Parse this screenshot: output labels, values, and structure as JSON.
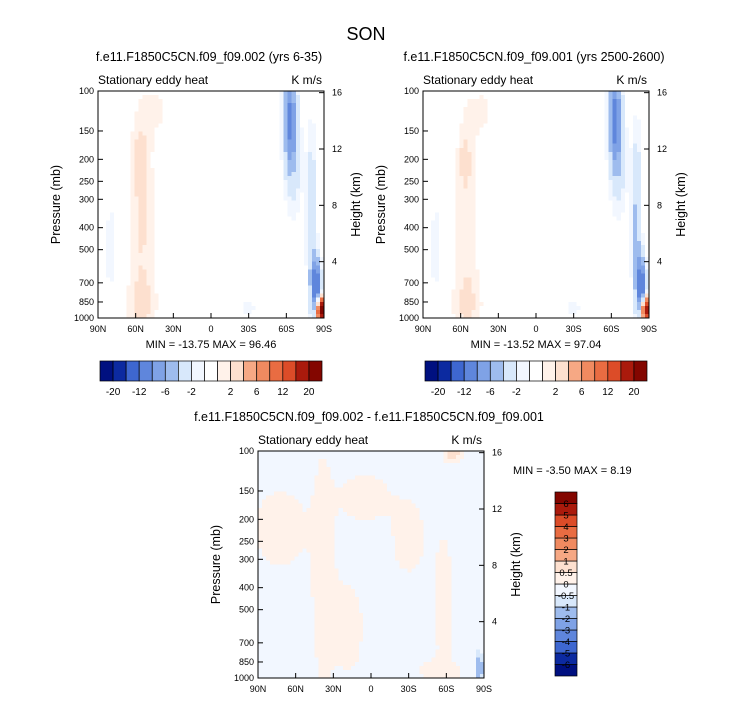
{
  "figure_title": "SON",
  "colors": {
    "neg": [
      "#f2f7ff",
      "#d8e8fb",
      "#bdd3f5",
      "#9ebcee",
      "#7fa2e6",
      "#5f86dc",
      "#3e67d0",
      "#2147bf",
      "#0c2aa0",
      "#001080"
    ],
    "pos": [
      "#fff2ea",
      "#fde0cf",
      "#fac6ab",
      "#f6a884",
      "#f08a60",
      "#e96c42",
      "#dc4c28",
      "#c83218",
      "#aa1a0c",
      "#830600"
    ]
  },
  "chart_data": [
    {
      "type": "heatmap",
      "title": "f.e11.F1850C5CN.f09_f09.002 (yrs 6-35)",
      "left_label": "Stationary eddy heat",
      "right_label": "K m/s",
      "ylabel": "Pressure (mb)",
      "ylabel_right": "Height (km)",
      "xlim": [
        90,
        -90
      ],
      "ylim": [
        1000,
        100
      ],
      "y_log": true,
      "x_ticks": [
        90,
        60,
        30,
        0,
        -30,
        -60,
        -90
      ],
      "x_tick_labels": [
        "90N",
        "60N",
        "30N",
        "0",
        "30S",
        "60S",
        "90S"
      ],
      "y_ticks": [
        100,
        150,
        200,
        250,
        300,
        400,
        500,
        700,
        850,
        1000
      ],
      "y_tick_labels": [
        "100",
        "150",
        "200",
        "250",
        "300",
        "400",
        "500",
        "700",
        "850",
        "1000"
      ],
      "height_ticks": [
        4,
        8,
        12,
        16
      ],
      "height_tick_labels": [
        "4",
        "8",
        "12",
        "16"
      ],
      "min_text": "MIN = -13.75  MAX = 96.46",
      "min": -13.75,
      "max": 96.46,
      "levels": [
        -20,
        -16,
        -12,
        -8,
        -6,
        -4,
        -2,
        -1,
        1,
        2,
        4,
        6,
        8,
        12,
        16,
        20
      ],
      "colorbar_labels": [
        "-20",
        "-12",
        "-6",
        "-2",
        "2",
        "6",
        "12",
        "20"
      ],
      "features": [
        {
          "lat": 55,
          "p": 350,
          "width_lat": 10,
          "width_logp": 0.55,
          "amp": 2.2
        },
        {
          "lat": 57,
          "p": 200,
          "width_lat": 5,
          "width_logp": 0.12,
          "amp": 1.8
        },
        {
          "lat": 55,
          "p": 880,
          "width_lat": 14,
          "width_logp": 0.12,
          "amp": 1.5
        },
        {
          "lat": 80,
          "p": 500,
          "width_lat": 5,
          "width_logp": 0.3,
          "amp": -1.4
        },
        {
          "lat": 40,
          "p": 120,
          "width_lat": 10,
          "width_logp": 0.15,
          "amp": 1.0
        },
        {
          "lat": -15,
          "p": 150,
          "width_lat": 10,
          "width_logp": 0.15,
          "amp": 0.7
        },
        {
          "lat": -47,
          "p": 115,
          "width_lat": 6,
          "width_logp": 0.12,
          "amp": 0.7
        },
        {
          "lat": -63,
          "p": 130,
          "width_lat": 5,
          "width_logp": 0.22,
          "amp": -8.0
        },
        {
          "lat": -66,
          "p": 210,
          "width_lat": 7,
          "width_logp": 0.25,
          "amp": -2.5
        },
        {
          "lat": -80,
          "p": 380,
          "width_lat": 4,
          "width_logp": 0.4,
          "amp": -4.0
        },
        {
          "lat": -84,
          "p": 720,
          "width_lat": 4,
          "width_logp": 0.12,
          "amp": -10.0
        },
        {
          "lat": -88,
          "p": 920,
          "width_lat": 3.5,
          "width_logp": 0.05,
          "amp": 24.0
        },
        {
          "lat": -30,
          "p": 900,
          "width_lat": 10,
          "width_logp": 0.06,
          "amp": -1.2
        },
        {
          "lat": 10,
          "p": 980,
          "width_lat": 20,
          "width_logp": 0.04,
          "amp": -0.8
        }
      ]
    },
    {
      "type": "heatmap",
      "title": "f.e11.F1850C5CN.f09_f09.001 (yrs 2500-2600)",
      "left_label": "Stationary eddy heat",
      "right_label": "K m/s",
      "ylabel": "Pressure (mb)",
      "ylabel_right": "Height (km)",
      "xlim": [
        90,
        -90
      ],
      "ylim": [
        1000,
        100
      ],
      "y_log": true,
      "x_ticks": [
        90,
        60,
        30,
        0,
        -30,
        -60,
        -90
      ],
      "x_tick_labels": [
        "90N",
        "60N",
        "30N",
        "0",
        "30S",
        "60S",
        "90S"
      ],
      "y_ticks": [
        100,
        150,
        200,
        250,
        300,
        400,
        500,
        700,
        850,
        1000
      ],
      "y_tick_labels": [
        "100",
        "150",
        "200",
        "250",
        "300",
        "400",
        "500",
        "700",
        "850",
        "1000"
      ],
      "height_ticks": [
        4,
        8,
        12,
        16
      ],
      "height_tick_labels": [
        "4",
        "8",
        "12",
        "16"
      ],
      "min_text": "MIN = -13.52  MAX = 97.04",
      "min": -13.52,
      "max": 97.04,
      "levels": [
        -20,
        -16,
        -12,
        -8,
        -6,
        -4,
        -2,
        -1,
        1,
        2,
        4,
        6,
        8,
        12,
        16,
        20
      ],
      "colorbar_labels": [
        "-20",
        "-12",
        "-6",
        "-2",
        "2",
        "6",
        "12",
        "20"
      ],
      "features": [
        {
          "lat": 55,
          "p": 350,
          "width_lat": 10,
          "width_logp": 0.55,
          "amp": 2.0
        },
        {
          "lat": 57,
          "p": 200,
          "width_lat": 4,
          "width_logp": 0.08,
          "amp": 1.6
        },
        {
          "lat": 55,
          "p": 880,
          "width_lat": 14,
          "width_logp": 0.12,
          "amp": 1.4
        },
        {
          "lat": 80,
          "p": 500,
          "width_lat": 5,
          "width_logp": 0.3,
          "amp": -1.4
        },
        {
          "lat": 40,
          "p": 120,
          "width_lat": 10,
          "width_logp": 0.15,
          "amp": 1.0
        },
        {
          "lat": -15,
          "p": 150,
          "width_lat": 10,
          "width_logp": 0.15,
          "amp": 0.7
        },
        {
          "lat": -47,
          "p": 115,
          "width_lat": 6,
          "width_logp": 0.12,
          "amp": 0.7
        },
        {
          "lat": -63,
          "p": 130,
          "width_lat": 5,
          "width_logp": 0.22,
          "amp": -8.5
        },
        {
          "lat": -66,
          "p": 210,
          "width_lat": 7,
          "width_logp": 0.25,
          "amp": -2.5
        },
        {
          "lat": -80,
          "p": 380,
          "width_lat": 4,
          "width_logp": 0.4,
          "amp": -4.5
        },
        {
          "lat": -84,
          "p": 720,
          "width_lat": 4,
          "width_logp": 0.12,
          "amp": -10.0
        },
        {
          "lat": -88,
          "p": 920,
          "width_lat": 3.5,
          "width_logp": 0.05,
          "amp": 22.0
        },
        {
          "lat": -30,
          "p": 900,
          "width_lat": 10,
          "width_logp": 0.06,
          "amp": -1.2
        },
        {
          "lat": 10,
          "p": 980,
          "width_lat": 20,
          "width_logp": 0.04,
          "amp": -0.8
        }
      ]
    },
    {
      "type": "heatmap",
      "title": "f.e11.F1850C5CN.f09_f09.002 - f.e11.F1850C5CN.f09_f09.001",
      "left_label": "Stationary eddy heat",
      "right_label": "K m/s",
      "ylabel": "Pressure (mb)",
      "ylabel_right": "Height (km)",
      "xlim": [
        90,
        -90
      ],
      "ylim": [
        1000,
        100
      ],
      "y_log": true,
      "x_ticks": [
        90,
        60,
        30,
        0,
        -30,
        -60,
        -90
      ],
      "x_tick_labels": [
        "90N",
        "60N",
        "30N",
        "0",
        "30S",
        "60S",
        "90S"
      ],
      "y_ticks": [
        100,
        150,
        200,
        250,
        300,
        400,
        500,
        700,
        850,
        1000
      ],
      "y_tick_labels": [
        "100",
        "150",
        "200",
        "250",
        "300",
        "400",
        "500",
        "700",
        "850",
        "1000"
      ],
      "height_ticks": [
        4,
        8,
        12,
        16
      ],
      "height_tick_labels": [
        "4",
        "8",
        "12",
        "16"
      ],
      "min_text": "MIN =  -3.50  MAX =  8.19",
      "min": -3.5,
      "max": 8.19,
      "levels": [
        -6,
        -5,
        -4,
        -3,
        -2,
        -1,
        -0.5,
        0,
        0.5,
        1,
        2,
        3,
        4,
        5,
        6
      ],
      "colorbar_labels": [
        "-6",
        "-5",
        "-4",
        "-3",
        "-2",
        "-1",
        "-0.5",
        "0",
        "0.5",
        "1",
        "2",
        "3",
        "4",
        "5",
        "6"
      ],
      "background": -0.2,
      "features": [
        {
          "lat": 72,
          "p": 220,
          "width_lat": 22,
          "width_logp": 0.18,
          "amp": 0.45
        },
        {
          "lat": 38,
          "p": 330,
          "width_lat": 9,
          "width_logp": 0.5,
          "amp": 0.5
        },
        {
          "lat": 18,
          "p": 600,
          "width_lat": 14,
          "width_logp": 0.25,
          "amp": 0.35
        },
        {
          "lat": 5,
          "p": 160,
          "width_lat": 22,
          "width_logp": 0.12,
          "amp": 0.4
        },
        {
          "lat": -30,
          "p": 240,
          "width_lat": 14,
          "width_logp": 0.18,
          "amp": 0.4
        },
        {
          "lat": -58,
          "p": 460,
          "width_lat": 8,
          "width_logp": 0.3,
          "amp": 0.45
        },
        {
          "lat": -65,
          "p": 102,
          "width_lat": 6,
          "width_logp": 0.04,
          "amp": 1.2
        },
        {
          "lat": -55,
          "p": 930,
          "width_lat": 20,
          "width_logp": 0.05,
          "amp": 0.4
        },
        {
          "lat": -86,
          "p": 900,
          "width_lat": 3,
          "width_logp": 0.06,
          "amp": -1.8
        }
      ]
    }
  ]
}
